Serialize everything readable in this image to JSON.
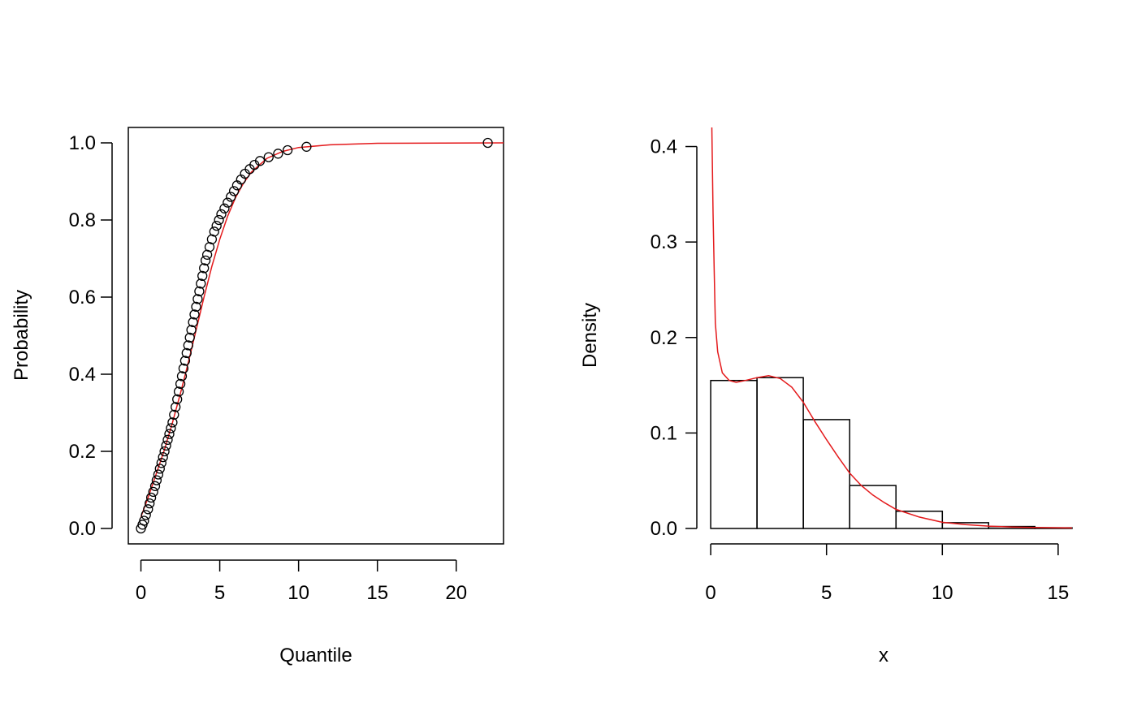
{
  "chart_data": [
    {
      "type": "scatter",
      "title": "",
      "xlabel": "Quantile",
      "ylabel": "Probability",
      "xlim": [
        -0.8,
        23.0
      ],
      "ylim": [
        -0.04,
        1.04
      ],
      "x_ticks": [
        "0",
        "5",
        "10",
        "15",
        "20"
      ],
      "x_tick_values": [
        0,
        5,
        10,
        15,
        20
      ],
      "y_ticks": [
        "0.0",
        "0.2",
        "0.4",
        "0.6",
        "0.8",
        "1.0"
      ],
      "y_tick_values": [
        0,
        0.2,
        0.4,
        0.6,
        0.8,
        1.0
      ],
      "grid": false,
      "point_series": {
        "name": "",
        "marker": "open-circle",
        "color": "#000000",
        "points": [
          [
            0.0,
            0.0
          ],
          [
            0.1,
            0.01
          ],
          [
            0.2,
            0.02
          ],
          [
            0.32,
            0.035
          ],
          [
            0.45,
            0.05
          ],
          [
            0.55,
            0.065
          ],
          [
            0.65,
            0.08
          ],
          [
            0.78,
            0.095
          ],
          [
            0.9,
            0.11
          ],
          [
            1.0,
            0.125
          ],
          [
            1.1,
            0.14
          ],
          [
            1.2,
            0.155
          ],
          [
            1.3,
            0.17
          ],
          [
            1.4,
            0.185
          ],
          [
            1.5,
            0.2
          ],
          [
            1.6,
            0.215
          ],
          [
            1.7,
            0.23
          ],
          [
            1.8,
            0.245
          ],
          [
            1.9,
            0.26
          ],
          [
            2.0,
            0.275
          ],
          [
            2.1,
            0.295
          ],
          [
            2.2,
            0.315
          ],
          [
            2.3,
            0.335
          ],
          [
            2.4,
            0.355
          ],
          [
            2.5,
            0.375
          ],
          [
            2.6,
            0.395
          ],
          [
            2.7,
            0.415
          ],
          [
            2.8,
            0.435
          ],
          [
            2.9,
            0.455
          ],
          [
            3.0,
            0.475
          ],
          [
            3.1,
            0.495
          ],
          [
            3.2,
            0.515
          ],
          [
            3.3,
            0.535
          ],
          [
            3.4,
            0.555
          ],
          [
            3.5,
            0.575
          ],
          [
            3.6,
            0.595
          ],
          [
            3.7,
            0.615
          ],
          [
            3.8,
            0.635
          ],
          [
            3.9,
            0.655
          ],
          [
            4.0,
            0.675
          ],
          [
            4.1,
            0.695
          ],
          [
            4.2,
            0.71
          ],
          [
            4.35,
            0.73
          ],
          [
            4.5,
            0.75
          ],
          [
            4.65,
            0.77
          ],
          [
            4.8,
            0.785
          ],
          [
            4.95,
            0.8
          ],
          [
            5.1,
            0.815
          ],
          [
            5.3,
            0.83
          ],
          [
            5.5,
            0.845
          ],
          [
            5.7,
            0.86
          ],
          [
            5.9,
            0.875
          ],
          [
            6.1,
            0.89
          ],
          [
            6.35,
            0.905
          ],
          [
            6.6,
            0.92
          ],
          [
            6.9,
            0.932
          ],
          [
            7.2,
            0.943
          ],
          [
            7.55,
            0.953
          ],
          [
            8.1,
            0.963
          ],
          [
            8.7,
            0.972
          ],
          [
            9.3,
            0.981
          ],
          [
            10.5,
            0.99
          ],
          [
            22.0,
            1.0
          ]
        ]
      },
      "line_series": {
        "name": "",
        "color": "#e41a1c",
        "points": [
          [
            0.0,
            0.03
          ],
          [
            0.5,
            0.085
          ],
          [
            1.0,
            0.145
          ],
          [
            1.5,
            0.205
          ],
          [
            2.0,
            0.275
          ],
          [
            2.5,
            0.35
          ],
          [
            3.0,
            0.43
          ],
          [
            3.5,
            0.515
          ],
          [
            4.0,
            0.6
          ],
          [
            4.5,
            0.68
          ],
          [
            5.0,
            0.75
          ],
          [
            5.5,
            0.81
          ],
          [
            6.0,
            0.858
          ],
          [
            6.5,
            0.895
          ],
          [
            7.0,
            0.924
          ],
          [
            8.0,
            0.96
          ],
          [
            9.0,
            0.978
          ],
          [
            10.0,
            0.988
          ],
          [
            12.0,
            0.995
          ],
          [
            15.0,
            0.999
          ],
          [
            23.0,
            1.0
          ]
        ]
      }
    },
    {
      "type": "bar",
      "title": "",
      "xlabel": "x",
      "ylabel": "Density",
      "xlim": [
        -0.6,
        15.6
      ],
      "ylim": [
        0,
        0.42
      ],
      "x_ticks": [
        "0",
        "5",
        "10",
        "15"
      ],
      "x_tick_values": [
        0,
        5,
        10,
        15
      ],
      "y_ticks": [
        "0.0",
        "0.1",
        "0.2",
        "0.3",
        "0.4"
      ],
      "y_tick_values": [
        0,
        0.1,
        0.2,
        0.3,
        0.4
      ],
      "grid": false,
      "bins": [
        {
          "x0": 0,
          "x1": 2,
          "density": 0.155
        },
        {
          "x0": 2,
          "x1": 4,
          "density": 0.158
        },
        {
          "x0": 4,
          "x1": 6,
          "density": 0.114
        },
        {
          "x0": 6,
          "x1": 8,
          "density": 0.045
        },
        {
          "x0": 8,
          "x1": 10,
          "density": 0.018
        },
        {
          "x0": 10,
          "x1": 12,
          "density": 0.006
        },
        {
          "x0": 12,
          "x1": 14,
          "density": 0.002
        },
        {
          "x0": 14,
          "x1": 16,
          "density": 0.0008
        }
      ],
      "density_curve": {
        "name": "",
        "color": "#e41a1c",
        "points": [
          [
            0.05,
            0.42
          ],
          [
            0.1,
            0.33
          ],
          [
            0.15,
            0.27
          ],
          [
            0.2,
            0.215
          ],
          [
            0.3,
            0.185
          ],
          [
            0.5,
            0.163
          ],
          [
            0.8,
            0.155
          ],
          [
            1.1,
            0.153
          ],
          [
            1.5,
            0.155
          ],
          [
            2.0,
            0.158
          ],
          [
            2.5,
            0.16
          ],
          [
            3.0,
            0.157
          ],
          [
            3.5,
            0.148
          ],
          [
            4.0,
            0.132
          ],
          [
            4.5,
            0.112
          ],
          [
            5.0,
            0.093
          ],
          [
            5.5,
            0.075
          ],
          [
            6.0,
            0.058
          ],
          [
            6.5,
            0.045
          ],
          [
            7.0,
            0.035
          ],
          [
            7.5,
            0.027
          ],
          [
            8.0,
            0.02
          ],
          [
            9.0,
            0.012
          ],
          [
            10.0,
            0.0065
          ],
          [
            11.0,
            0.004
          ],
          [
            12.0,
            0.0025
          ],
          [
            13.0,
            0.0015
          ],
          [
            14.0,
            0.001
          ],
          [
            15.6,
            0.0005
          ]
        ]
      }
    }
  ]
}
